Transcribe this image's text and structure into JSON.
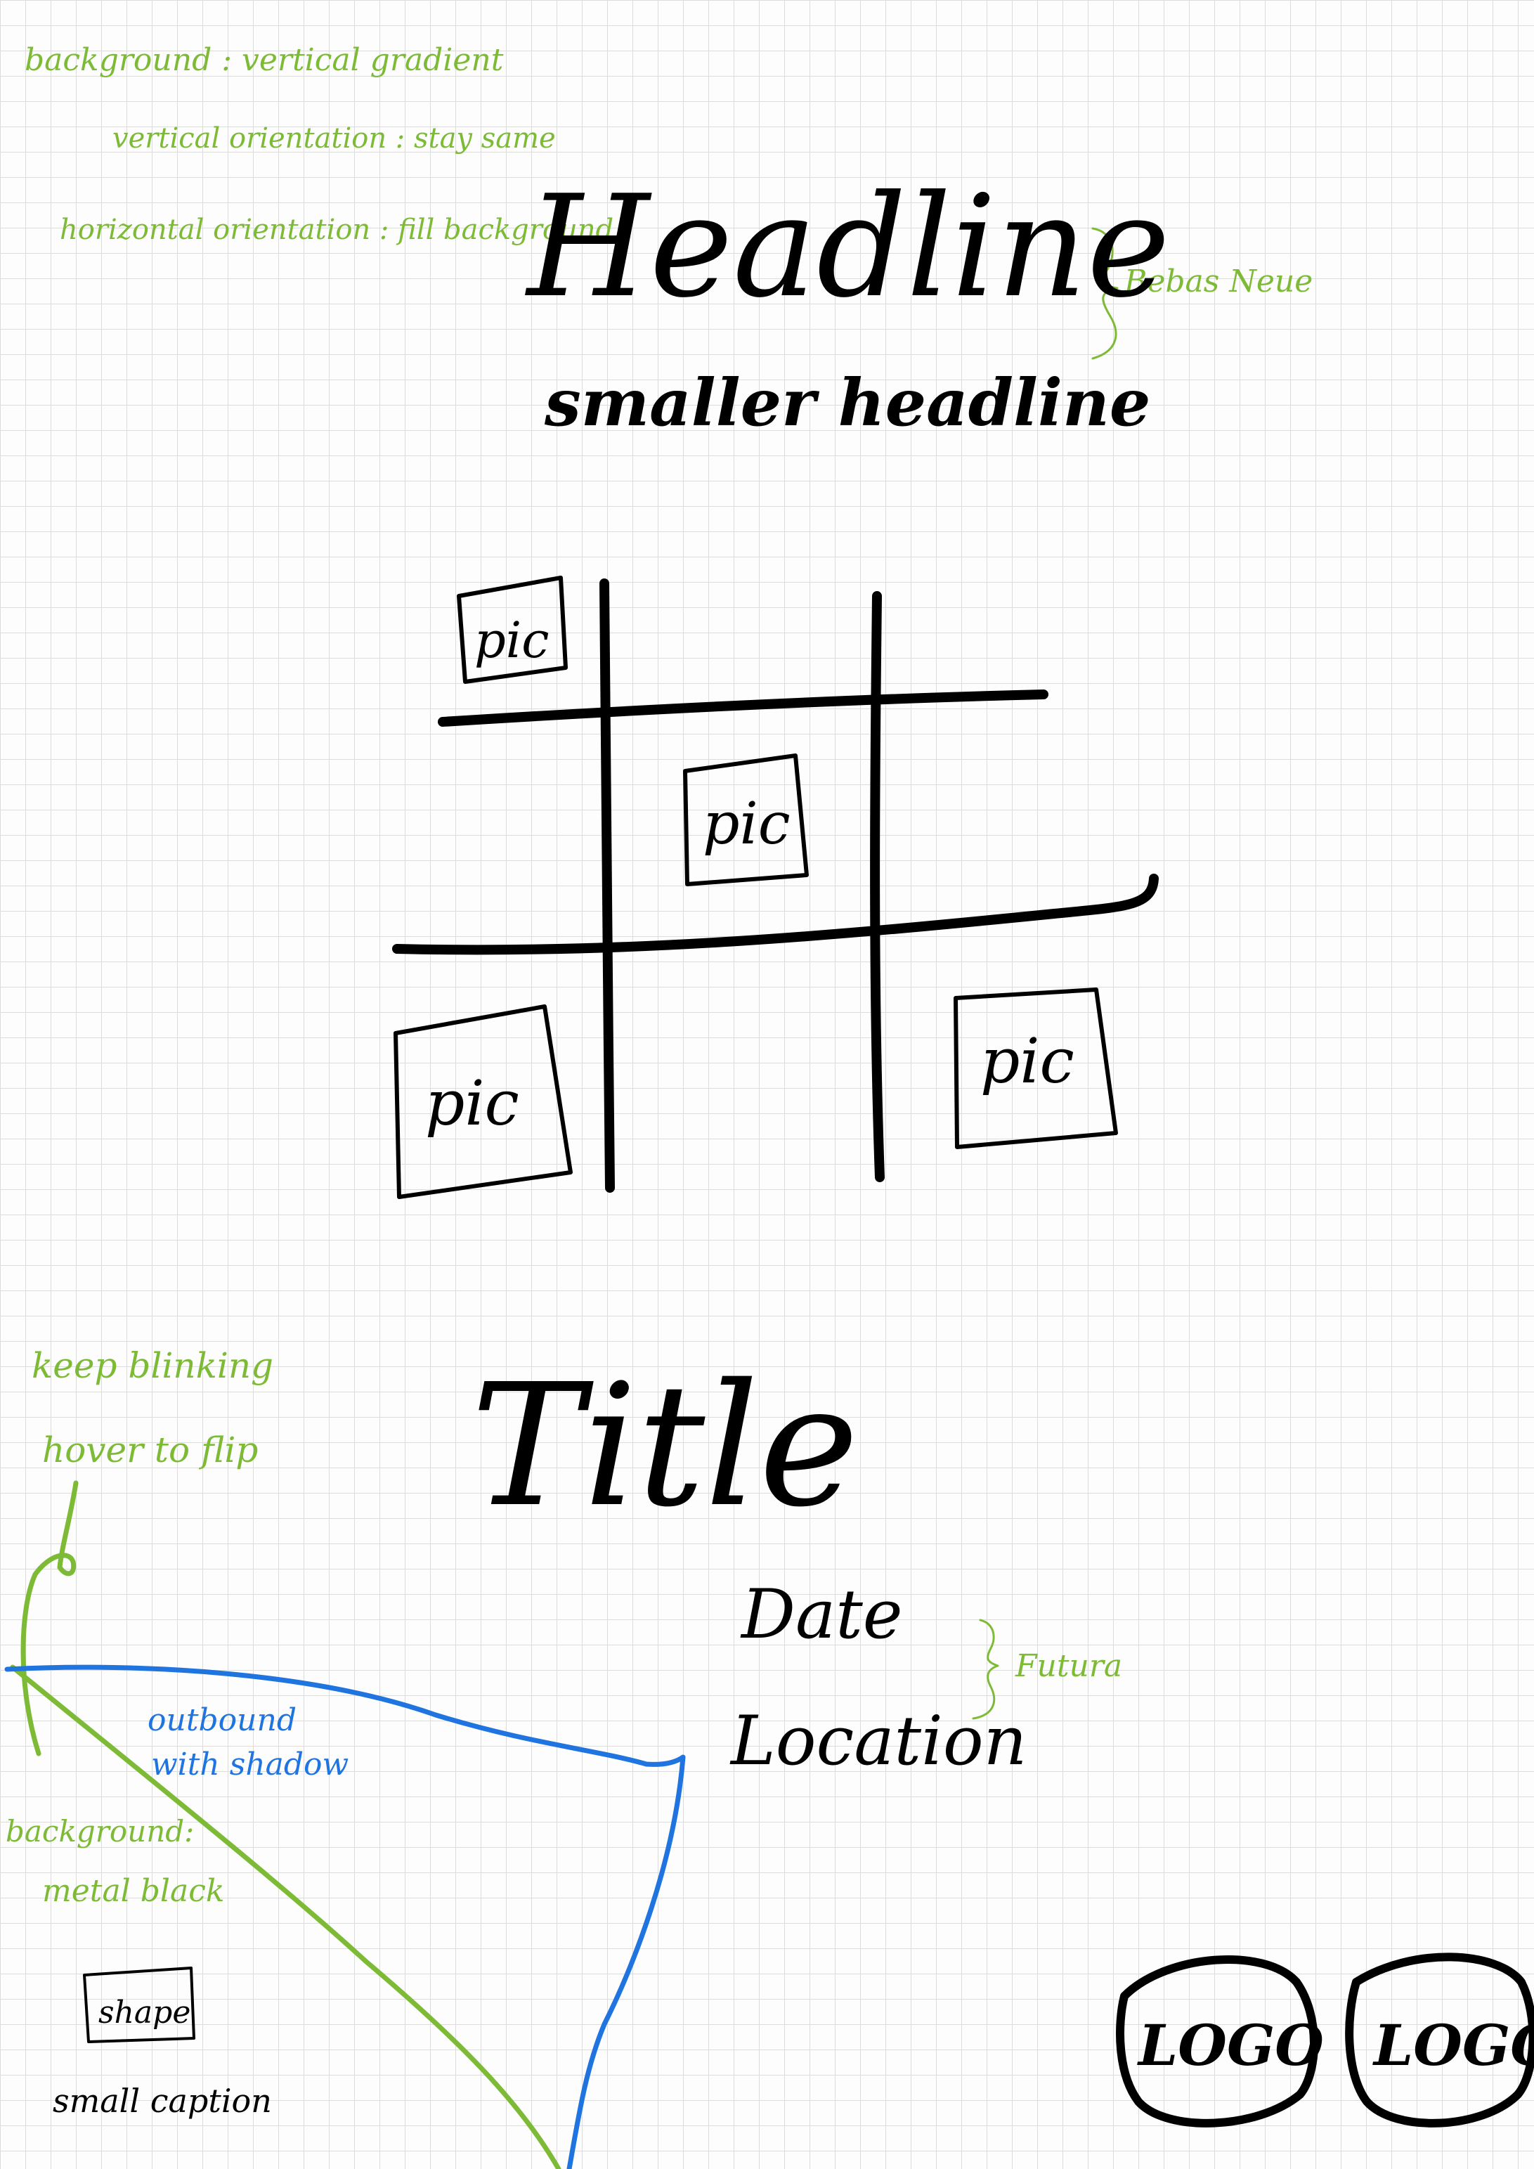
{
  "notes": {
    "background_heading": "background : vertical gradient",
    "vertical_orientation": "vertical orientation : stay same",
    "horizontal_orientation": "horizontal orientation : fill background",
    "font_headline": "Bebas Neue",
    "font_details": "Futura",
    "keep_blinking": "keep blinking",
    "hover_to_flip": "hover to flip",
    "outbound_line1": "outbound",
    "outbound_line2": "with shadow",
    "background_label": "background:",
    "metal_black": "metal black"
  },
  "header": {
    "headline": "Headline",
    "smaller_headline": "smaller headline"
  },
  "grid": {
    "pic_labels": [
      "pic",
      "pic",
      "pic",
      "pic"
    ]
  },
  "event": {
    "title": "Title",
    "date": "Date",
    "location": "Location"
  },
  "footer": {
    "shape_label": "shape",
    "small_caption": "small caption",
    "logos": [
      "LOGO",
      "LOGO"
    ]
  },
  "colors": {
    "paper": "#fdfdfd",
    "grid_line": "#dcdcdc",
    "ink": "#000000",
    "annotation_green": "#7dbb36",
    "annotation_blue": "#1f74e0"
  }
}
